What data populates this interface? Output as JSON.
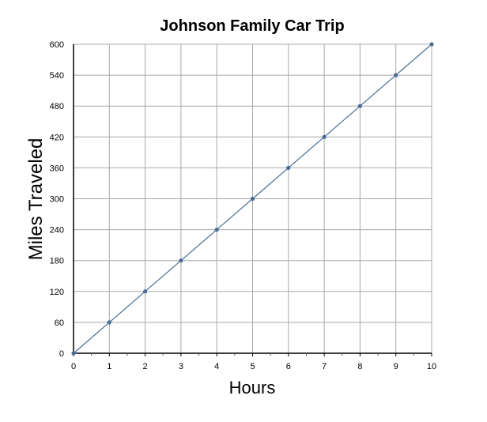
{
  "chart_data": {
    "type": "line",
    "title": "Johnson Family Car Trip",
    "xlabel": "Hours",
    "ylabel": "Miles Traveled",
    "xlim": [
      0,
      10
    ],
    "ylim": [
      0,
      600
    ],
    "xticks": [
      0,
      1,
      2,
      3,
      4,
      5,
      6,
      7,
      8,
      9,
      10
    ],
    "yticks": [
      0,
      60,
      120,
      180,
      240,
      300,
      360,
      420,
      480,
      540,
      600
    ],
    "grid": true,
    "series": [
      {
        "name": "Miles Traveled",
        "color": "#4a6d96",
        "x": [
          0,
          1,
          2,
          3,
          4,
          5,
          6,
          7,
          8,
          9,
          10
        ],
        "y": [
          0,
          60,
          120,
          180,
          240,
          300,
          360,
          420,
          480,
          540,
          600
        ]
      }
    ]
  }
}
